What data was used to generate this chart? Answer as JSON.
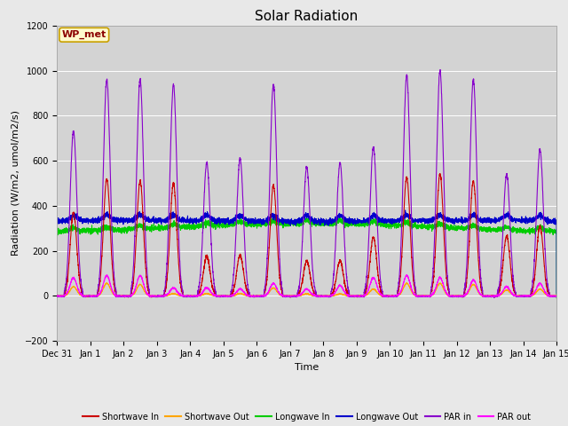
{
  "title": "Solar Radiation",
  "xlabel": "Time",
  "ylabel": "Radiation (W/m2, umol/m2/s)",
  "ylim": [
    -200,
    1200
  ],
  "yticks": [
    -200,
    0,
    200,
    400,
    600,
    800,
    1000,
    1200
  ],
  "xlim": [
    0,
    15
  ],
  "xtick_labels": [
    "Dec 31",
    "Jan 1",
    "Jan 2",
    "Jan 3",
    "Jan 4",
    "Jan 5",
    "Jan 6",
    "Jan 7",
    "Jan 8",
    "Jan 9",
    "Jan 10",
    "Jan 11",
    "Jan 12",
    "Jan 13",
    "Jan 14",
    "Jan 15"
  ],
  "xtick_positions": [
    0,
    1,
    2,
    3,
    4,
    5,
    6,
    7,
    8,
    9,
    10,
    11,
    12,
    13,
    14,
    15
  ],
  "fig_bg_color": "#e8e8e8",
  "plot_bg_color": "#d3d3d3",
  "grid_color": "#ffffff",
  "legend_label": "WP_met",
  "series": {
    "shortwave_in": {
      "color": "#cc0000",
      "label": "Shortwave In",
      "lw": 0.8
    },
    "shortwave_out": {
      "color": "#ffa500",
      "label": "Shortwave Out",
      "lw": 0.8
    },
    "longwave_in": {
      "color": "#00cc00",
      "label": "Longwave In",
      "lw": 0.8
    },
    "longwave_out": {
      "color": "#0000cc",
      "label": "Longwave Out",
      "lw": 0.8
    },
    "par_in": {
      "color": "#8800cc",
      "label": "PAR in",
      "lw": 0.8
    },
    "par_out": {
      "color": "#ff00ff",
      "label": "PAR out",
      "lw": 0.8
    }
  },
  "par_in_peaks": [
    730,
    960,
    960,
    940,
    590,
    610,
    940,
    570,
    590,
    660,
    980,
    1000,
    960,
    540,
    650
  ],
  "par_out_peaks": [
    80,
    90,
    90,
    35,
    35,
    30,
    55,
    30,
    45,
    80,
    90,
    80,
    70,
    40,
    55
  ],
  "sw_in_peaks": [
    370,
    520,
    510,
    500,
    175,
    180,
    490,
    155,
    155,
    260,
    525,
    540,
    510,
    265,
    310
  ],
  "sw_out_peaks": [
    40,
    55,
    50,
    10,
    10,
    10,
    35,
    8,
    8,
    30,
    55,
    55,
    50,
    25,
    30
  ],
  "lw_in_base": 295,
  "lw_out_base": 320,
  "n_days": 15,
  "pts_per_day": 288,
  "title_fontsize": 11,
  "axis_fontsize": 8,
  "tick_fontsize": 7
}
